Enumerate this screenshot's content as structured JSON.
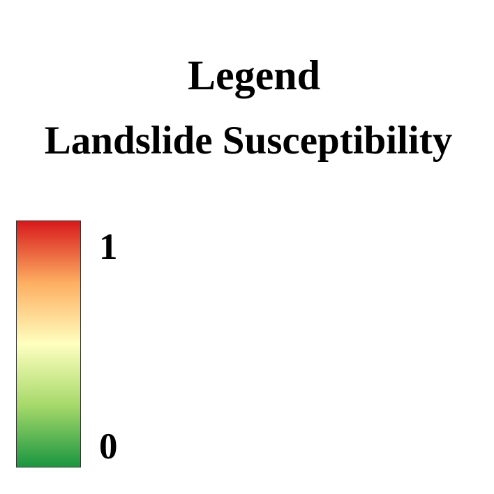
{
  "legend": {
    "heading": "Legend",
    "layer_title": "Landslide Susceptibility",
    "ramp": {
      "max_label": "1",
      "min_label": "0",
      "colors": [
        "#d7191c",
        "#fdae61",
        "#ffffbf",
        "#a6d96a",
        "#1a9641"
      ]
    }
  }
}
